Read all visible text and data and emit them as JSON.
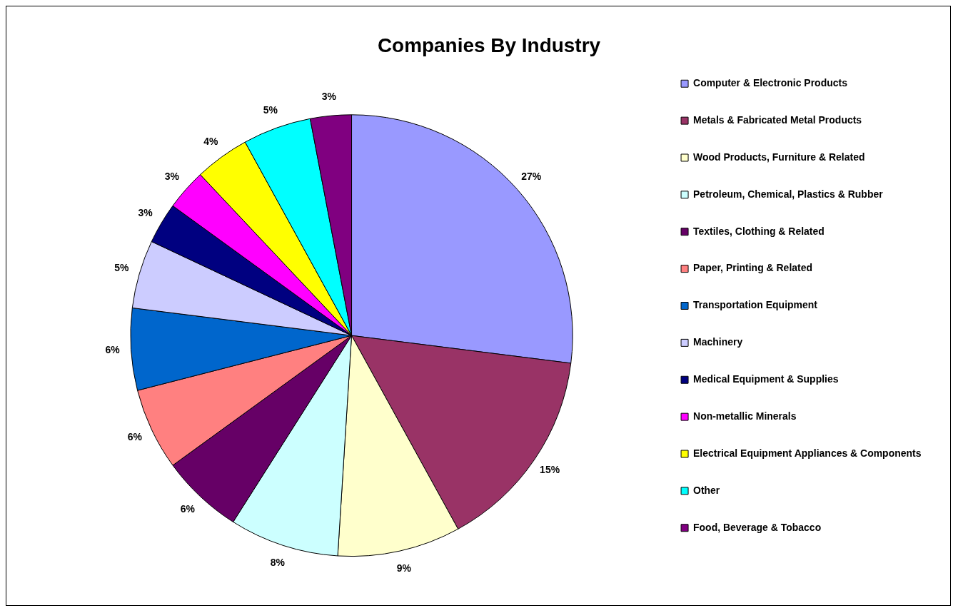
{
  "chart_data": {
    "type": "pie",
    "title": "Companies By Industry",
    "categories": [
      "Computer & Electronic Products",
      "Metals & Fabricated Metal Products",
      "Wood Products, Furniture & Related",
      "Petroleum, Chemical, Plastics & Rubber",
      "Textiles, Clothing & Related",
      "Paper, Printing & Related",
      "Transportation Equipment",
      "Machinery",
      "Medical Equipment & Supplies",
      "Non-metallic Minerals",
      "Electrical Equipment Appliances & Components",
      "Other",
      "Food, Beverage & Tobacco"
    ],
    "values": [
      27,
      15,
      9,
      8,
      6,
      6,
      6,
      5,
      3,
      3,
      4,
      5,
      3
    ],
    "colors": [
      "#9999ff",
      "#993366",
      "#ffffcc",
      "#ccffff",
      "#660066",
      "#ff8080",
      "#0066cc",
      "#ccccff",
      "#000080",
      "#ff00ff",
      "#ffff00",
      "#00ffff",
      "#800080"
    ],
    "value_labels": [
      "27%",
      "15%",
      "9%",
      "8%",
      "6%",
      "6%",
      "6%",
      "5%",
      "3%",
      "3%",
      "4%",
      "5%",
      "3%"
    ],
    "legend": "right"
  }
}
